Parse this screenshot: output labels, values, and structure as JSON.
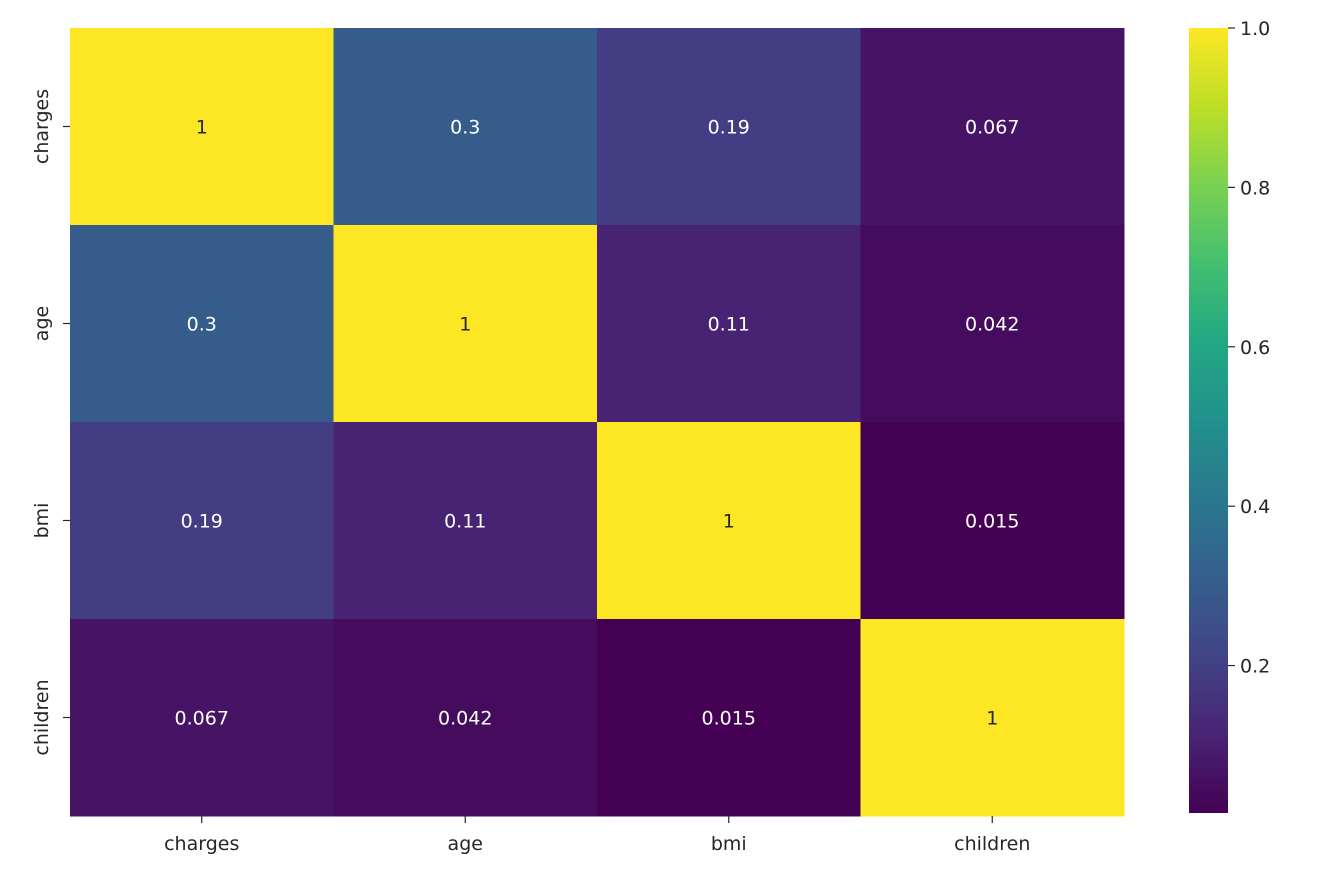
{
  "chart_data": {
    "type": "heatmap",
    "rows": [
      "charges",
      "age",
      "bmi",
      "children"
    ],
    "columns": [
      "charges",
      "age",
      "bmi",
      "children"
    ],
    "values": [
      [
        1,
        0.3,
        0.19,
        0.067
      ],
      [
        0.3,
        1,
        0.11,
        0.042
      ],
      [
        0.19,
        0.11,
        1,
        0.015
      ],
      [
        0.067,
        0.042,
        0.015,
        1
      ]
    ],
    "annotations": [
      [
        "1",
        "0.3",
        "0.19",
        "0.067"
      ],
      [
        "0.3",
        "1",
        "0.11",
        "0.042"
      ],
      [
        "0.19",
        "0.11",
        "1",
        "0.015"
      ],
      [
        "0.067",
        "0.042",
        "0.015",
        "1"
      ]
    ],
    "colormap": "viridis",
    "vmin": 0.015,
    "vmax": 1.0,
    "colorbar": {
      "ticks": [
        0.2,
        0.4,
        0.6,
        0.8,
        1.0
      ],
      "tick_labels": [
        "0.2",
        "0.4",
        "0.6",
        "0.8",
        "1.0"
      ]
    },
    "title": "",
    "xlabel": "",
    "ylabel": ""
  }
}
